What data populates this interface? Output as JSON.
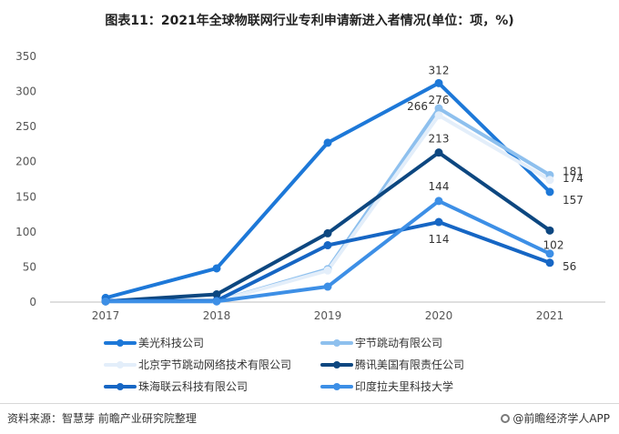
{
  "title": "图表11：2021年全球物联网行业专利申请新进入者情况(单位：项，%)",
  "source": "资料来源：智慧芽 前瞻产业研究院整理",
  "brand": "@前瞻经济学人APP",
  "chart_data": {
    "type": "line",
    "categories": [
      "2017",
      "2018",
      "2019",
      "2020",
      "2021"
    ],
    "ylim": [
      0,
      350
    ],
    "yticks": [
      0,
      50,
      100,
      150,
      200,
      250,
      300,
      350
    ],
    "grid": false,
    "legend_position": "bottom",
    "series": [
      {
        "name": "美光科技公司",
        "values": [
          6,
          48,
          227,
          312,
          157
        ],
        "color": "#1d78d8",
        "labels": {
          "3": "312",
          "4": "157"
        }
      },
      {
        "name": "宇节跳动有限公司",
        "values": [
          1,
          1,
          47,
          276,
          181
        ],
        "color": "#8ec0ee",
        "labels": {
          "3": "276",
          "4": "181"
        }
      },
      {
        "name": "北京宇节跳动网络技术有限公司",
        "values": [
          1,
          1,
          45,
          266,
          174
        ],
        "color": "#e3eefa",
        "labels": {
          "3": "266",
          "4": "174"
        }
      },
      {
        "name": "腾讯美国有限责任公司",
        "values": [
          1,
          11,
          98,
          213,
          102
        ],
        "color": "#0d4780",
        "labels": {
          "3": "213",
          "4": "102"
        }
      },
      {
        "name": "珠海联云科技有限公司",
        "values": [
          2,
          2,
          81,
          114,
          56
        ],
        "color": "#1666c4",
        "labels": {
          "3": "114",
          "4": "56"
        }
      },
      {
        "name": "印度拉夫里科技大学",
        "values": [
          1,
          1,
          22,
          144,
          69
        ],
        "color": "#3d8fe6",
        "labels": {
          "3": "144"
        }
      }
    ]
  }
}
